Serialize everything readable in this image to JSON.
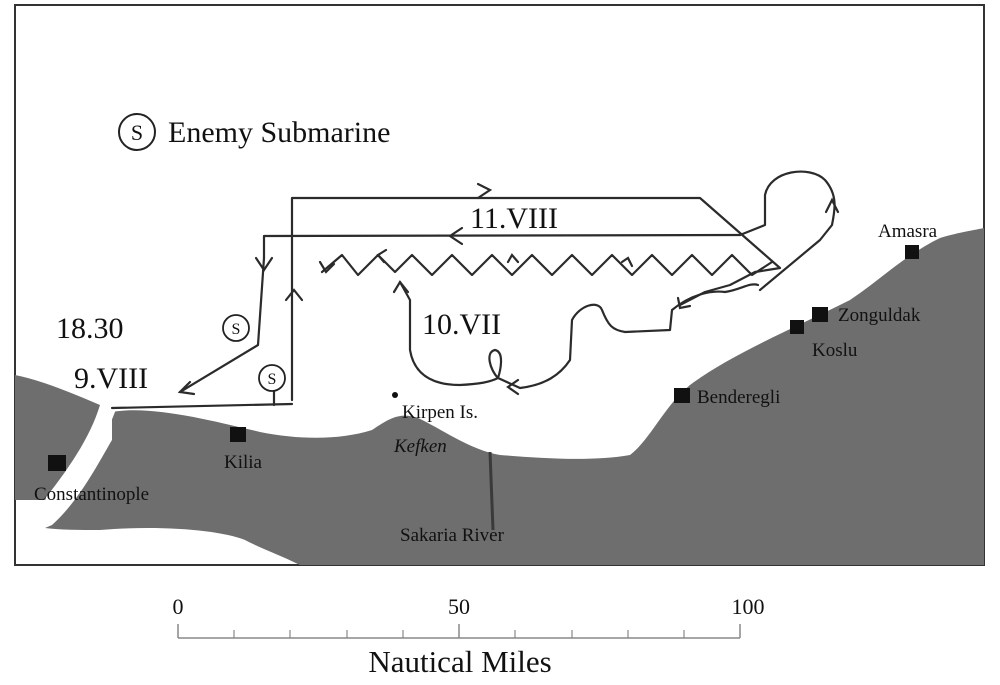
{
  "legend": {
    "symbol": "S",
    "label": "Enemy Submarine"
  },
  "dates": {
    "time": "18.30",
    "day1": "9.VIII",
    "day2": "11.VIII",
    "day3": "10.VII"
  },
  "places": {
    "constantinople": "Constantinople",
    "kilia": "Kilia",
    "kirpen": "Kirpen Is.",
    "kefken": "Kefken",
    "sakaria": "Sakaria River",
    "benderegli": "Benderegli",
    "zonguldak": "Zonguldak",
    "koslu": "Koslu",
    "amasra": "Amasra"
  },
  "scale": {
    "ticks": [
      "0",
      "50",
      "100"
    ],
    "unit": "Nautical Miles"
  },
  "colors": {
    "land": "#6e6e6e",
    "sea": "#ffffff",
    "track": "#2b2b2b",
    "frame": "#333333"
  }
}
